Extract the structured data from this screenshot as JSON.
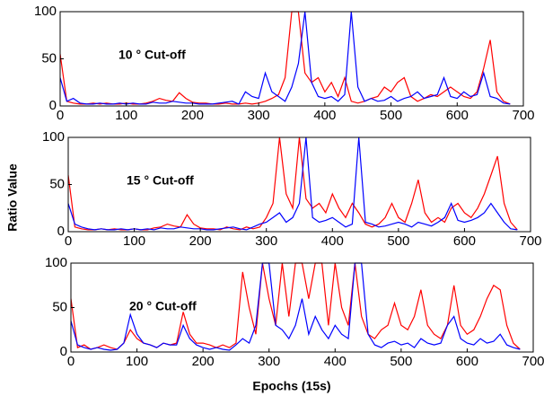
{
  "chart_data": [
    {
      "type": "line",
      "annotation": "10 ° Cut-off",
      "x": [
        0,
        10,
        20,
        30,
        40,
        50,
        60,
        70,
        80,
        90,
        100,
        110,
        120,
        130,
        140,
        150,
        160,
        170,
        180,
        190,
        200,
        210,
        220,
        230,
        240,
        250,
        260,
        270,
        280,
        290,
        300,
        310,
        320,
        330,
        340,
        350,
        360,
        370,
        380,
        390,
        400,
        410,
        420,
        430,
        440,
        450,
        460,
        470,
        480,
        490,
        500,
        510,
        520,
        530,
        540,
        550,
        560,
        570,
        580,
        590,
        600,
        610,
        620,
        630,
        640,
        650,
        660,
        670,
        680
      ],
      "series": [
        {
          "color": "#ff0000",
          "values": [
            55,
            5,
            3,
            2,
            2,
            3,
            2,
            3,
            2,
            2,
            3,
            2,
            2,
            3,
            5,
            8,
            6,
            5,
            14,
            8,
            4,
            3,
            3,
            2,
            2,
            3,
            2,
            2,
            3,
            2,
            3,
            5,
            8,
            12,
            30,
            100,
            100,
            35,
            25,
            30,
            15,
            25,
            10,
            30,
            5,
            3,
            5,
            8,
            10,
            20,
            15,
            25,
            30,
            10,
            5,
            8,
            12,
            10,
            15,
            20,
            15,
            10,
            8,
            15,
            40,
            70,
            15,
            5,
            2
          ]
        },
        {
          "color": "#0000ff",
          "values": [
            30,
            5,
            8,
            3,
            2,
            2,
            3,
            2,
            2,
            3,
            2,
            3,
            2,
            2,
            4,
            3,
            3,
            5,
            4,
            3,
            3,
            2,
            2,
            2,
            3,
            4,
            5,
            2,
            15,
            10,
            8,
            35,
            15,
            10,
            5,
            20,
            45,
            100,
            25,
            10,
            8,
            10,
            5,
            12,
            100,
            20,
            5,
            8,
            5,
            6,
            10,
            5,
            8,
            10,
            15,
            8,
            10,
            12,
            30,
            10,
            8,
            15,
            10,
            12,
            35,
            10,
            8,
            3,
            2
          ]
        }
      ],
      "xlim": [
        0,
        700
      ],
      "xticks": [
        0,
        100,
        200,
        300,
        400,
        500,
        600,
        700
      ],
      "ylim": [
        0,
        100
      ],
      "yticks": [
        0,
        50,
        100
      ]
    },
    {
      "type": "line",
      "annotation": "15 ° Cut-off",
      "y_label": "Ratio Value",
      "x": [
        0,
        10,
        20,
        30,
        40,
        50,
        60,
        70,
        80,
        90,
        100,
        110,
        120,
        130,
        140,
        150,
        160,
        170,
        180,
        190,
        200,
        210,
        220,
        230,
        240,
        250,
        260,
        270,
        280,
        290,
        300,
        310,
        320,
        330,
        340,
        350,
        360,
        370,
        380,
        390,
        400,
        410,
        420,
        430,
        440,
        450,
        460,
        470,
        480,
        490,
        500,
        510,
        520,
        530,
        540,
        550,
        560,
        570,
        580,
        590,
        600,
        610,
        620,
        630,
        640,
        650,
        660,
        670,
        680
      ],
      "series": [
        {
          "color": "#ff0000",
          "values": [
            60,
            5,
            3,
            2,
            2,
            3,
            2,
            3,
            2,
            2,
            3,
            2,
            2,
            4,
            5,
            8,
            6,
            5,
            18,
            8,
            4,
            3,
            3,
            2,
            5,
            3,
            2,
            5,
            3,
            5,
            15,
            30,
            100,
            40,
            25,
            100,
            35,
            25,
            30,
            20,
            40,
            25,
            15,
            30,
            20,
            8,
            5,
            8,
            15,
            30,
            15,
            10,
            30,
            55,
            20,
            10,
            15,
            10,
            25,
            30,
            20,
            15,
            25,
            40,
            60,
            80,
            30,
            10,
            2
          ]
        },
        {
          "color": "#0000ff",
          "values": [
            30,
            8,
            5,
            3,
            2,
            3,
            2,
            2,
            3,
            2,
            3,
            2,
            3,
            2,
            4,
            3,
            3,
            5,
            4,
            3,
            3,
            2,
            2,
            3,
            4,
            5,
            3,
            2,
            5,
            8,
            10,
            15,
            20,
            10,
            15,
            30,
            100,
            15,
            10,
            12,
            15,
            10,
            5,
            8,
            100,
            10,
            8,
            5,
            6,
            8,
            10,
            8,
            5,
            10,
            8,
            6,
            10,
            15,
            30,
            12,
            10,
            12,
            15,
            20,
            30,
            20,
            10,
            3,
            2
          ]
        }
      ],
      "xlim": [
        0,
        700
      ],
      "xticks": [
        0,
        100,
        200,
        300,
        400,
        500,
        600,
        700
      ],
      "ylim": [
        0,
        100
      ],
      "yticks": [
        0,
        50,
        100
      ]
    },
    {
      "type": "line",
      "annotation": "20 ° Cut-off",
      "x_label": "Epochs (15s)",
      "x": [
        0,
        10,
        20,
        30,
        40,
        50,
        60,
        70,
        80,
        90,
        100,
        110,
        120,
        130,
        140,
        150,
        160,
        170,
        180,
        190,
        200,
        210,
        220,
        230,
        240,
        250,
        260,
        270,
        280,
        290,
        300,
        310,
        320,
        330,
        340,
        350,
        360,
        370,
        380,
        390,
        400,
        410,
        420,
        430,
        440,
        450,
        460,
        470,
        480,
        490,
        500,
        510,
        520,
        530,
        540,
        550,
        560,
        570,
        580,
        590,
        600,
        610,
        620,
        630,
        640,
        650,
        660,
        670,
        680
      ],
      "series": [
        {
          "color": "#ff0000",
          "values": [
            60,
            5,
            8,
            3,
            5,
            8,
            5,
            3,
            10,
            25,
            15,
            10,
            8,
            5,
            10,
            8,
            10,
            45,
            20,
            10,
            10,
            8,
            5,
            8,
            5,
            10,
            90,
            50,
            20,
            100,
            60,
            30,
            100,
            40,
            100,
            100,
            60,
            100,
            100,
            30,
            100,
            50,
            30,
            100,
            40,
            20,
            15,
            25,
            30,
            55,
            30,
            25,
            40,
            70,
            30,
            20,
            15,
            30,
            75,
            30,
            20,
            25,
            40,
            60,
            75,
            70,
            30,
            10,
            3
          ]
        },
        {
          "color": "#0000ff",
          "values": [
            35,
            8,
            5,
            3,
            5,
            3,
            2,
            3,
            10,
            42,
            20,
            10,
            8,
            5,
            10,
            8,
            8,
            30,
            15,
            8,
            5,
            3,
            5,
            3,
            2,
            8,
            15,
            10,
            30,
            100,
            100,
            30,
            25,
            15,
            30,
            60,
            20,
            40,
            25,
            15,
            30,
            20,
            15,
            100,
            100,
            20,
            8,
            5,
            10,
            12,
            8,
            10,
            5,
            15,
            10,
            8,
            10,
            30,
            40,
            15,
            10,
            8,
            15,
            10,
            12,
            20,
            8,
            5,
            3
          ]
        }
      ],
      "xlim": [
        0,
        700
      ],
      "xticks": [
        0,
        100,
        200,
        300,
        400,
        500,
        600,
        700
      ],
      "ylim": [
        0,
        100
      ],
      "yticks": [
        0,
        50,
        100
      ]
    }
  ]
}
